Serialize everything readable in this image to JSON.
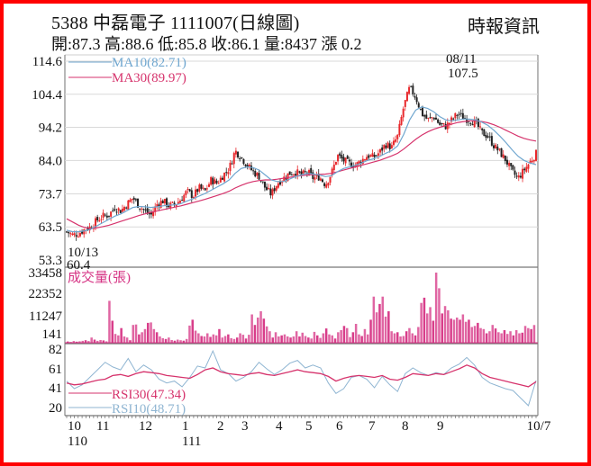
{
  "header": {
    "title": "5388  中磊電子 1111007(日線圖)",
    "brand": "時報資訊",
    "ohlc": "開:87.3 高:88.6 低:85.8 收:86.1 量:8437 漲 0.2"
  },
  "colors": {
    "border": "#ff0000",
    "up_candle": "#e8282c",
    "down_candle": "#222222",
    "ma10": "#6fa6cf",
    "ma30": "#d6336c",
    "volume": "#d63384",
    "rsi30": "#d6336c",
    "rsi10": "#8fb5d2",
    "grid": "#d9d9d9",
    "axis": "#888888"
  },
  "chart_data": [
    {
      "type": "candlestick",
      "title": "5388 中磊電子 1111007(日線圖)",
      "panel": "price",
      "ylim": [
        53.3,
        114.6
      ],
      "yticks": [
        114.6,
        104.4,
        94.2,
        84.0,
        73.7,
        63.5,
        53.3
      ],
      "legend": [
        {
          "name": "MA10",
          "value": "MA10(82.71)",
          "color": "#6fa6cf"
        },
        {
          "name": "MA30",
          "value": "MA30(89.97)",
          "color": "#d6336c"
        }
      ],
      "annotations": [
        {
          "label_date": "08/11",
          "label_value": "107.5",
          "kind": "high"
        },
        {
          "label_date": "10/13",
          "label_value": "60.4",
          "kind": "low"
        }
      ],
      "last": {
        "open": 87.3,
        "high": 88.6,
        "low": 85.8,
        "close": 86.1,
        "volume": 8437,
        "change": 0.2
      },
      "close_path": [
        62.0,
        61.0,
        61.5,
        62.8,
        63.5,
        65.5,
        66.8,
        67.2,
        69.5,
        68.5,
        70.5,
        72.5,
        70.0,
        68.5,
        67.0,
        70.5,
        71.5,
        70.0,
        70.5,
        72.0,
        74.5,
        73.0,
        75.5,
        74.5,
        78.0,
        77.0,
        79.5,
        81.5,
        87.0,
        85.0,
        82.5,
        80.5,
        79.0,
        75.5,
        73.5,
        77.0,
        78.5,
        80.0,
        80.5,
        79.5,
        80.5,
        78.5,
        79.0,
        76.5,
        80.0,
        85.5,
        84.0,
        83.0,
        82.5,
        84.0,
        85.5,
        85.0,
        86.5,
        89.0,
        88.0,
        91.5,
        100.5,
        106.5,
        103.5,
        98.5,
        96.5,
        97.5,
        95.0,
        94.5,
        96.5,
        98.5,
        97.0,
        96.5,
        95.5,
        92.5,
        91.5,
        88.5,
        86.5,
        84.0,
        80.5,
        78.5,
        81.0,
        83.5,
        86.1
      ],
      "ma10_path": [
        62.5,
        62.0,
        62.0,
        62.3,
        62.8,
        63.8,
        64.8,
        65.8,
        66.8,
        67.5,
        68.5,
        69.5,
        69.8,
        69.7,
        69.5,
        69.7,
        70.0,
        70.2,
        70.3,
        70.7,
        71.5,
        72.2,
        73.0,
        73.8,
        74.8,
        75.8,
        76.8,
        78.0,
        80.0,
        81.5,
        82.0,
        81.8,
        81.0,
        79.5,
        78.0,
        77.5,
        77.5,
        78.2,
        79.0,
        79.5,
        80.0,
        79.8,
        79.5,
        79.0,
        79.3,
        80.5,
        81.5,
        82.0,
        82.5,
        83.2,
        84.0,
        84.5,
        85.2,
        86.2,
        87.0,
        88.5,
        92.0,
        96.5,
        99.5,
        100.5,
        100.0,
        99.0,
        97.5,
        96.5,
        96.2,
        96.5,
        96.8,
        96.7,
        96.5,
        95.8,
        94.8,
        93.3,
        91.5,
        89.5,
        87.3,
        85.3,
        84.0,
        83.2,
        82.71
      ],
      "ma30_path": [
        66.0,
        65.0,
        64.0,
        63.3,
        63.0,
        63.2,
        63.6,
        64.0,
        64.6,
        65.2,
        65.8,
        66.4,
        67.0,
        67.5,
        68.0,
        68.4,
        68.8,
        69.2,
        69.6,
        70.0,
        70.5,
        71.0,
        71.5,
        72.0,
        72.6,
        73.2,
        73.8,
        74.5,
        75.5,
        76.3,
        77.0,
        77.5,
        77.8,
        78.0,
        78.0,
        78.2,
        78.5,
        78.8,
        79.1,
        79.3,
        79.5,
        79.6,
        79.7,
        79.8,
        80.0,
        80.5,
        81.0,
        81.5,
        82.0,
        82.5,
        83.0,
        83.5,
        84.0,
        84.7,
        85.4,
        86.2,
        87.5,
        89.0,
        90.5,
        91.8,
        92.8,
        93.6,
        94.2,
        94.7,
        95.2,
        95.7,
        96.0,
        96.2,
        96.2,
        96.0,
        95.6,
        95.0,
        94.2,
        93.3,
        92.4,
        91.5,
        90.8,
        90.3,
        89.97
      ]
    },
    {
      "type": "bar",
      "panel": "volume",
      "title": "成交量(張)",
      "ylim": [
        0,
        33458
      ],
      "yticks": [
        33458,
        22352,
        11247,
        141
      ],
      "values": [
        600,
        400,
        800,
        500,
        700,
        900,
        1200,
        800,
        2500,
        1500,
        900,
        1300,
        1100,
        700,
        20000,
        10500,
        4200,
        3500,
        7000,
        3000,
        2500,
        1200,
        8500,
        8700,
        4000,
        5000,
        6500,
        9500,
        9700,
        6500,
        5000,
        3000,
        2200,
        1800,
        2500,
        1300,
        1000,
        1500,
        1200,
        1000,
        1800,
        8200,
        11000,
        5800,
        4500,
        3200,
        3000,
        4500,
        2800,
        4000,
        3500,
        6500,
        2500,
        3200,
        4000,
        2200,
        1800,
        2500,
        4500,
        3800,
        2000,
        3800,
        13500,
        8500,
        12000,
        15000,
        11500,
        7800,
        5500,
        2500,
        5000,
        3000,
        3500,
        4000,
        3000,
        2500,
        3000,
        5500,
        3000,
        4800,
        3200,
        2500,
        2000,
        5200,
        3500,
        2300,
        4500,
        6800,
        4000,
        3500,
        2000,
        5000,
        6000,
        8000,
        7000,
        2700,
        5000,
        9000,
        4000,
        3200,
        6500,
        4000,
        11000,
        22000,
        14500,
        18500,
        22000,
        12500,
        15000,
        5500,
        4500,
        5000,
        3000,
        3200,
        5500,
        7000,
        4500,
        3500,
        7500,
        19000,
        21500,
        14000,
        17000,
        10500,
        33458,
        26000,
        14000,
        17500,
        15500,
        11500,
        11000,
        12000,
        11000,
        13500,
        10000,
        11000,
        7500,
        8000,
        9500,
        7000,
        6500,
        4500,
        5500,
        8500,
        6800,
        5000,
        4500,
        6000,
        4200,
        5500,
        3500,
        6000,
        4500,
        4800,
        8000,
        7000,
        6500,
        8437
      ]
    },
    {
      "type": "line",
      "panel": "rsi",
      "ylim": [
        15,
        87
      ],
      "yticks": [
        82,
        61,
        41,
        20
      ],
      "legend": [
        {
          "name": "RSI30",
          "value": "RSI30(47.34)",
          "color": "#d6336c"
        },
        {
          "name": "RSI10",
          "value": "RSI10(48.71)",
          "color": "#8fb5d2"
        }
      ],
      "series": [
        {
          "name": "RSI30",
          "values": [
            46,
            44,
            45,
            47,
            49,
            50,
            54,
            55,
            53,
            56,
            58,
            57,
            56,
            54,
            53,
            52,
            51,
            55,
            60,
            62,
            58,
            56,
            55,
            54,
            56,
            57,
            55,
            54,
            56,
            58,
            60,
            58,
            57,
            56,
            53,
            48,
            51,
            53,
            54,
            53,
            52,
            54,
            50,
            49,
            52,
            56,
            55,
            54,
            56,
            55,
            58,
            61,
            65,
            62,
            56,
            52,
            50,
            48,
            46,
            44,
            42,
            47.34
          ]
        },
        {
          "name": "RSI10",
          "values": [
            48,
            40,
            44,
            52,
            60,
            68,
            63,
            60,
            72,
            58,
            65,
            60,
            50,
            46,
            48,
            42,
            52,
            64,
            62,
            80,
            60,
            56,
            48,
            52,
            58,
            68,
            61,
            55,
            60,
            67,
            70,
            62,
            65,
            62,
            46,
            35,
            40,
            52,
            54,
            50,
            41,
            53,
            44,
            37,
            56,
            62,
            57,
            54,
            57,
            55,
            62,
            66,
            73,
            65,
            52,
            46,
            43,
            40,
            38,
            30,
            22,
            48.71
          ]
        }
      ]
    }
  ],
  "xaxis": {
    "ticks": [
      {
        "label": "10",
        "sub": "110"
      },
      {
        "label": "11",
        "sub": ""
      },
      {
        "label": "12",
        "sub": ""
      },
      {
        "label": "1",
        "sub": "111"
      },
      {
        "label": "2",
        "sub": ""
      },
      {
        "label": "3",
        "sub": ""
      },
      {
        "label": "4",
        "sub": ""
      },
      {
        "label": "5",
        "sub": ""
      },
      {
        "label": "6",
        "sub": ""
      },
      {
        "label": "7",
        "sub": ""
      },
      {
        "label": "8",
        "sub": ""
      },
      {
        "label": "9",
        "sub": ""
      },
      {
        "label": "10/7",
        "sub": ""
      }
    ]
  },
  "labels": {
    "volume_title": "成交量(張)",
    "high_date": "08/11",
    "high_value": "107.5",
    "low_date": "10/13",
    "low_value": "60.4",
    "ma10": "MA10(82.71)",
    "ma30": "MA30(89.97)",
    "rsi30": "RSI30(47.34)",
    "rsi10": "RSI10(48.71)"
  }
}
